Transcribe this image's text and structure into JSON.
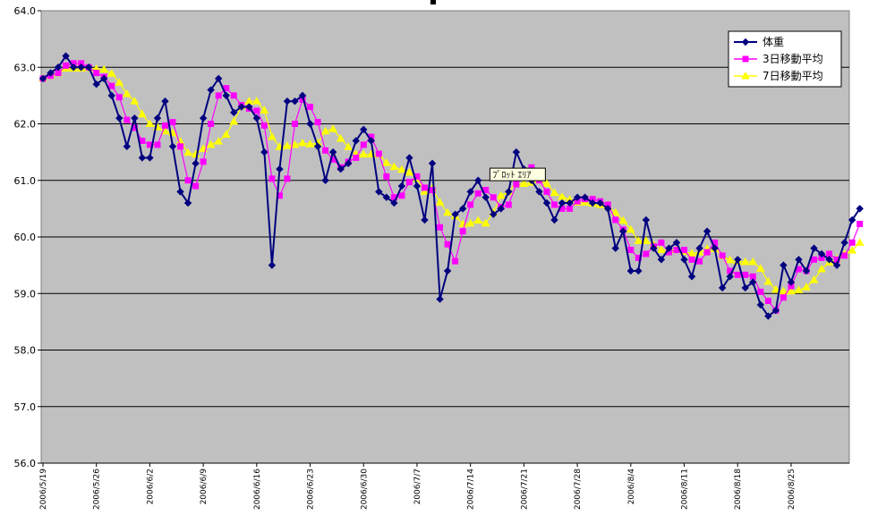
{
  "chart_data": {
    "type": "line",
    "title": "",
    "xlabel": "",
    "ylabel": "",
    "ylim": [
      56.0,
      64.0
    ],
    "yticks": [
      "56.0",
      "57.0",
      "58.0",
      "59.0",
      "60.0",
      "61.0",
      "62.0",
      "63.0",
      "64.0"
    ],
    "xstart": "2006/5/19",
    "xtick_labels": [
      "2006/5/19",
      "2006/5/26",
      "2006/6/2",
      "2006/6/9",
      "2006/6/16",
      "2006/6/23",
      "2006/6/30",
      "2006/7/7",
      "2006/7/14",
      "2006/7/21",
      "2006/7/28",
      "2006/8/4",
      "2006/8/11",
      "2006/8/18",
      "2006/8/25"
    ],
    "grid": true,
    "legend_position": "top-right",
    "plot_background": "#c0c0c0",
    "series": [
      {
        "name": "体重",
        "color": "#000080",
        "marker": "diamond",
        "values": [
          62.8,
          62.9,
          63.0,
          63.2,
          63.0,
          63.0,
          63.0,
          62.7,
          62.8,
          62.5,
          62.1,
          61.6,
          62.1,
          61.4,
          61.4,
          62.1,
          62.4,
          61.6,
          60.8,
          60.6,
          61.3,
          62.1,
          62.6,
          62.8,
          62.5,
          62.2,
          62.3,
          62.3,
          62.1,
          61.5,
          59.5,
          61.2,
          62.4,
          62.4,
          62.5,
          62.0,
          61.6,
          61.0,
          61.5,
          61.2,
          61.3,
          61.7,
          61.9,
          61.7,
          60.8,
          60.7,
          60.6,
          60.9,
          61.4,
          60.9,
          60.3,
          61.3,
          58.9,
          59.4,
          60.4,
          60.5,
          60.8,
          61.0,
          60.7,
          60.4,
          60.5,
          60.8,
          61.5,
          61.2,
          61.0,
          60.8,
          60.6,
          60.3,
          60.6,
          60.6,
          60.7,
          60.7,
          60.6,
          60.6,
          60.5,
          59.8,
          60.1,
          59.4,
          59.4,
          60.3,
          59.8,
          59.6,
          59.8,
          59.9,
          59.6,
          59.3,
          59.8,
          60.1,
          59.8,
          59.1,
          59.3,
          59.6,
          59.1,
          59.2,
          58.8,
          58.6,
          58.7,
          59.5,
          59.2,
          59.6,
          59.4,
          59.8,
          59.7,
          59.6,
          59.5,
          59.9,
          60.3,
          60.5
        ]
      },
      {
        "name": "3日移動平均",
        "color": "#ff00ff",
        "marker": "square",
        "values": [
          62.8,
          62.85,
          62.9,
          63.03,
          63.07,
          63.07,
          63.0,
          62.9,
          62.83,
          62.67,
          62.47,
          62.07,
          61.93,
          61.7,
          61.63,
          61.63,
          61.97,
          62.03,
          61.6,
          61.0,
          60.9,
          61.33,
          62.0,
          62.5,
          62.63,
          62.5,
          62.33,
          62.27,
          62.23,
          61.97,
          61.03,
          60.73,
          61.03,
          62.0,
          62.43,
          62.3,
          62.03,
          61.53,
          61.37,
          61.23,
          61.33,
          61.4,
          61.63,
          61.77,
          61.47,
          61.07,
          60.7,
          60.73,
          60.97,
          61.07,
          60.87,
          60.83,
          60.17,
          59.87,
          59.57,
          60.1,
          60.57,
          60.77,
          60.83,
          60.7,
          60.53,
          60.57,
          60.93,
          61.17,
          61.23,
          61.0,
          60.8,
          60.57,
          60.5,
          60.5,
          60.63,
          60.67,
          60.67,
          60.63,
          60.57,
          60.3,
          60.13,
          59.77,
          59.63,
          59.7,
          59.83,
          59.9,
          59.73,
          59.77,
          59.77,
          59.6,
          59.57,
          59.73,
          59.9,
          59.67,
          59.4,
          59.33,
          59.33,
          59.3,
          59.03,
          58.87,
          58.7,
          58.93,
          59.13,
          59.43,
          59.4,
          59.6,
          59.63,
          59.7,
          59.6,
          59.67,
          59.9,
          60.23
        ]
      },
      {
        "name": "7日移動平均",
        "color": "#ffff00",
        "marker": "triangle",
        "values": [
          62.8,
          62.85,
          62.9,
          62.98,
          62.98,
          62.98,
          62.99,
          62.97,
          62.96,
          62.89,
          62.73,
          62.53,
          62.4,
          62.17,
          62.0,
          61.94,
          61.87,
          61.84,
          61.69,
          61.49,
          61.46,
          61.56,
          61.63,
          61.69,
          61.81,
          62.04,
          62.31,
          62.4,
          62.4,
          62.24,
          61.77,
          61.59,
          61.61,
          61.63,
          61.66,
          61.64,
          61.66,
          61.87,
          61.91,
          61.74,
          61.59,
          61.46,
          61.46,
          61.46,
          61.46,
          61.31,
          61.24,
          61.19,
          61.14,
          61.03,
          60.8,
          60.86,
          60.61,
          60.43,
          60.37,
          60.23,
          60.24,
          60.29,
          60.24,
          60.43,
          60.73,
          60.8,
          60.94,
          60.94,
          60.96,
          61.0,
          60.94,
          60.78,
          60.71,
          60.66,
          60.61,
          60.61,
          60.59,
          60.57,
          60.54,
          60.43,
          60.29,
          60.13,
          59.93,
          59.93,
          59.86,
          59.77,
          59.77,
          59.77,
          59.74,
          59.71,
          59.73,
          59.79,
          59.79,
          59.66,
          59.59,
          59.57,
          59.56,
          59.56,
          59.44,
          59.21,
          59.07,
          59.04,
          59.04,
          59.06,
          59.11,
          59.24,
          59.43,
          59.55,
          59.61,
          59.7,
          59.76,
          59.9
        ]
      }
    ],
    "tooltip": {
      "text": "ﾌﾟﾛｯﾄ ｴﾘｱ",
      "anchor_index": 63,
      "anchor_series": 0
    }
  }
}
